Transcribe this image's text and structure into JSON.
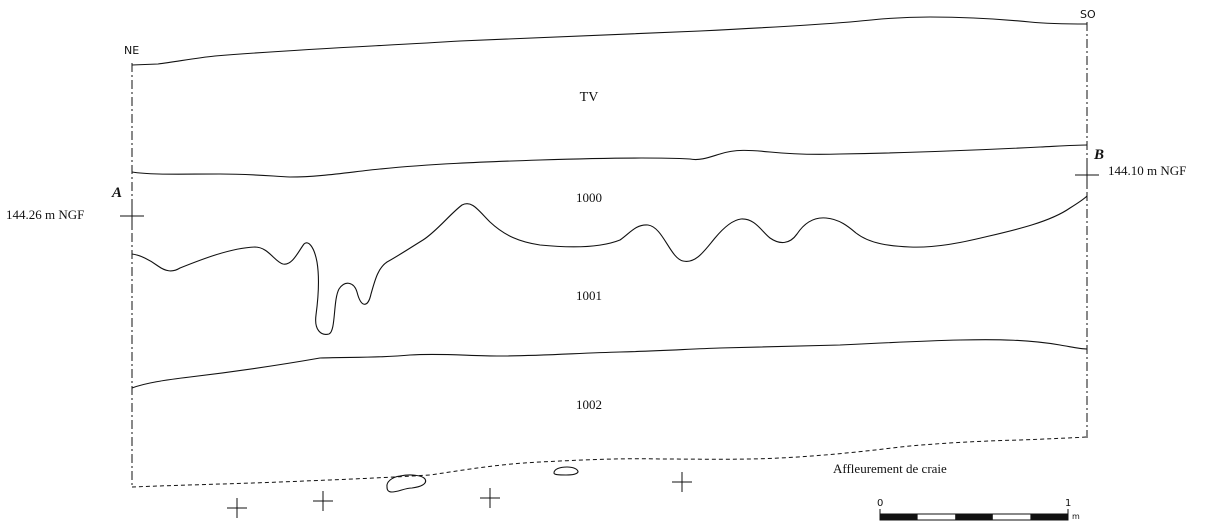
{
  "orientation": {
    "left": "NE",
    "right": "SO"
  },
  "layers": {
    "tv": "TV",
    "l1000": "1000",
    "l1001": "1001",
    "l1002": "1002"
  },
  "reference_points": {
    "a": {
      "letter": "A",
      "elevation": "144.26 m NGF"
    },
    "b": {
      "letter": "B",
      "elevation": "144.10 m NGF"
    }
  },
  "annotation": {
    "craie": "Affleurement de craie"
  },
  "scale_bar": {
    "start": "0",
    "end": "1",
    "unit": "m"
  }
}
